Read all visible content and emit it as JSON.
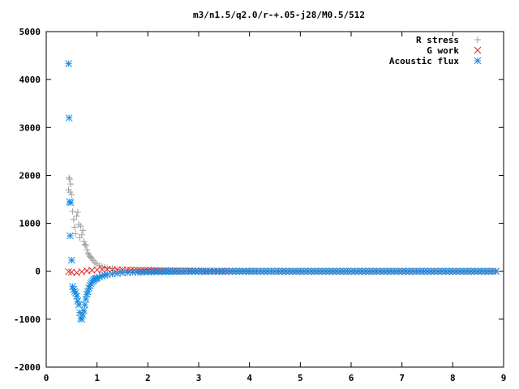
{
  "chart_data": {
    "type": "scatter",
    "title": "m3/n1.5/q2.0/r-+.05-j28/M0.5/512",
    "xlabel": "",
    "ylabel": "",
    "xlim": [
      0,
      9
    ],
    "ylim": [
      -2000,
      5000
    ],
    "x_ticks": [
      "0",
      "1",
      "2",
      "3",
      "4",
      "5",
      "6",
      "7",
      "8",
      "9"
    ],
    "y_ticks": [
      "-2000",
      "-1000",
      "0",
      "1000",
      "2000",
      "3000",
      "4000",
      "5000"
    ],
    "grid": false,
    "legend_position": "top-right",
    "series": [
      {
        "name": "R stress",
        "marker": "+",
        "color": "#a0a0a0",
        "x": [
          0.44,
          0.45,
          0.46,
          0.47,
          0.48,
          0.5,
          0.52,
          0.54,
          0.56,
          0.58,
          0.6,
          0.62,
          0.64,
          0.66,
          0.68,
          0.7,
          0.72,
          0.74,
          0.76,
          0.78,
          0.8,
          0.82,
          0.84,
          0.86,
          0.88,
          0.9,
          0.93,
          0.96,
          1.0,
          1.05,
          1.1,
          1.15,
          1.2,
          1.3,
          1.4,
          1.5,
          1.6,
          1.7,
          1.8,
          1.9,
          2.0,
          2.2,
          2.5,
          2.8,
          3.2,
          3.6,
          4.0,
          4.5,
          5.0,
          5.5,
          6.0,
          6.5,
          7.0,
          7.5,
          8.0,
          8.5,
          8.85
        ],
        "y": [
          1700,
          1950,
          1920,
          1650,
          1820,
          1600,
          1250,
          1080,
          920,
          780,
          1150,
          1230,
          980,
          700,
          940,
          760,
          850,
          620,
          560,
          540,
          450,
          380,
          340,
          310,
          290,
          260,
          220,
          180,
          150,
          120,
          100,
          85,
          70,
          55,
          40,
          30,
          22,
          18,
          14,
          10,
          8,
          6,
          4,
          3,
          2,
          1,
          1,
          0,
          0,
          0,
          0,
          0,
          0,
          0,
          0,
          0,
          0
        ]
      },
      {
        "name": "G work",
        "marker": "x",
        "color": "#e8231f",
        "x": [
          0.44,
          0.5,
          0.6,
          0.7,
          0.8,
          0.9,
          1.0,
          1.1,
          1.2,
          1.3,
          1.4,
          1.5,
          1.6,
          1.8,
          2.0,
          2.2,
          2.5,
          2.8,
          3.0,
          3.3,
          3.6,
          4.0,
          4.5,
          5.0,
          5.5,
          6.0,
          6.5,
          7.0,
          7.5,
          8.0,
          8.5,
          8.85
        ],
        "y": [
          -10,
          -20,
          -30,
          -10,
          10,
          20,
          30,
          35,
          40,
          35,
          30,
          28,
          25,
          20,
          18,
          15,
          10,
          8,
          5,
          3,
          2,
          1,
          0,
          0,
          0,
          0,
          0,
          0,
          0,
          0,
          0,
          0
        ]
      },
      {
        "name": "Acoustic flux",
        "marker": "*",
        "color": "#1a8be0",
        "x": [
          0.44,
          0.45,
          0.46,
          0.47,
          0.48,
          0.5,
          0.52,
          0.54,
          0.56,
          0.58,
          0.6,
          0.62,
          0.64,
          0.66,
          0.68,
          0.7,
          0.72,
          0.74,
          0.76,
          0.78,
          0.8,
          0.82,
          0.84,
          0.86,
          0.88,
          0.9,
          0.92,
          0.94,
          0.96,
          0.98,
          1.0,
          1.05,
          1.1,
          1.15,
          1.2,
          1.3,
          1.4,
          1.5,
          1.6,
          1.7,
          1.8,
          2.0,
          2.2,
          2.5,
          2.8,
          3.2,
          3.6,
          4.0,
          4.5,
          5.0,
          5.5,
          6.0,
          6.5,
          7.0,
          7.5,
          8.0,
          8.5,
          8.85
        ],
        "y": [
          4330,
          3200,
          1450,
          740,
          1430,
          230,
          -320,
          -380,
          -420,
          -450,
          -520,
          -620,
          -700,
          -860,
          -980,
          -1000,
          -900,
          -820,
          -700,
          -580,
          -480,
          -430,
          -350,
          -300,
          -260,
          -230,
          -200,
          -180,
          -160,
          -150,
          -140,
          -120,
          -100,
          -80,
          -70,
          -55,
          -45,
          -35,
          -28,
          -22,
          -18,
          -12,
          -8,
          -5,
          -3,
          -2,
          -1,
          0,
          0,
          0,
          0,
          0,
          0,
          0,
          0,
          0,
          0,
          0
        ]
      }
    ]
  }
}
